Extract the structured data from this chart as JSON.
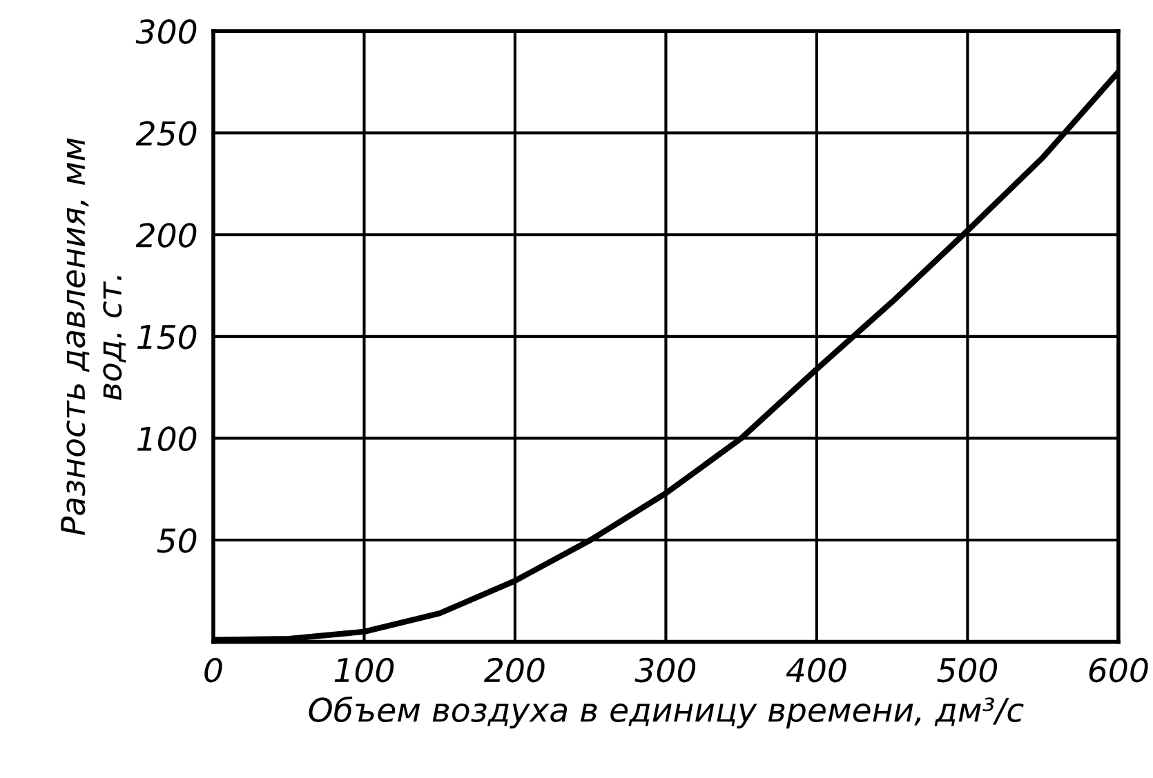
{
  "chart_data": {
    "type": "line",
    "xlabel": "Объем воздуха в единицу времени, дм³/с",
    "ylabel": "Разность давления, мм\nвод. ст.",
    "x": [
      0,
      50,
      100,
      150,
      200,
      250,
      300,
      350,
      400,
      450,
      500,
      550,
      600
    ],
    "series": [
      {
        "color": "#000000",
        "values": [
          1,
          1.5,
          5,
          14,
          30,
          50,
          73,
          100,
          134,
          167,
          202,
          238,
          280
        ]
      }
    ],
    "xlim": [
      0,
      600
    ],
    "ylim": [
      0,
      300
    ],
    "xticks": [
      0,
      100,
      200,
      300,
      400,
      500,
      600
    ],
    "yticks": [
      50,
      100,
      150,
      200,
      250,
      300
    ],
    "grid": true,
    "marker": "none",
    "line_style": "solid"
  }
}
